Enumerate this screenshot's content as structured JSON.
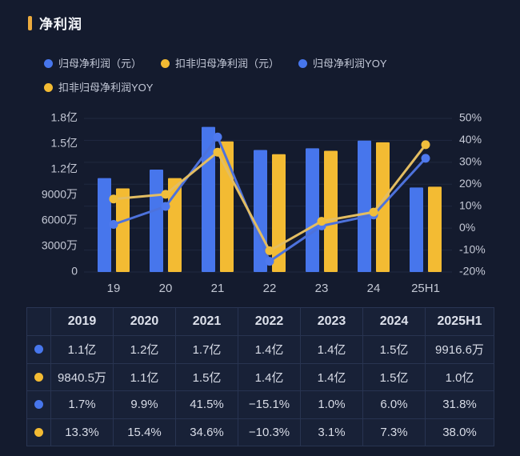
{
  "header": {
    "title": "净利润",
    "accent_color": "#EBAA3E"
  },
  "legend": [
    {
      "label": "归母净利润（元）",
      "color": "#4776EC"
    },
    {
      "label": "扣非归母净利润（元）",
      "color": "#F3BB33"
    },
    {
      "label": "归母净利润YOY",
      "color": "#4776EC"
    },
    {
      "label": "扣非归母净利润YOY",
      "color": "#F3BB33"
    }
  ],
  "chart_data": {
    "type": "bar+line",
    "title": "净利润",
    "categories": [
      "19",
      "20",
      "21",
      "22",
      "23",
      "24",
      "25H1"
    ],
    "left_axis": {
      "labels": [
        "1.8亿",
        "1.5亿",
        "1.2亿",
        "9000万",
        "6000万",
        "3000万",
        "0"
      ],
      "min_yi": 0,
      "max_yi": 1.8
    },
    "right_axis": {
      "labels": [
        "50%",
        "40%",
        "30%",
        "20%",
        "10%",
        "0%",
        "-10%",
        "-20%"
      ],
      "min_pct": -20,
      "max_pct": 50
    },
    "grid": "horizontal-only",
    "legend_position": "top",
    "series": [
      {
        "name": "归母净利润（元）",
        "type": "bar",
        "color": "#4776EC",
        "values_yi": [
          1.1,
          1.2,
          1.7,
          1.43,
          1.45,
          1.54,
          0.99
        ]
      },
      {
        "name": "扣非归母净利润（元）",
        "type": "bar",
        "color": "#F3BB33",
        "values_yi": [
          0.98,
          1.1,
          1.53,
          1.38,
          1.42,
          1.52,
          1.0
        ]
      },
      {
        "name": "归母净利润YOY",
        "type": "line",
        "line_color": "#4D72DC",
        "marker_color": "#4E79EE",
        "values_pct": [
          1.7,
          9.9,
          41.5,
          -15.1,
          1.0,
          6.0,
          31.8
        ]
      },
      {
        "name": "扣非归母净利润YOY",
        "type": "line",
        "line_color": "#E3BD62",
        "marker_color": "#F0BE3C",
        "values_pct": [
          13.3,
          15.4,
          34.6,
          -10.3,
          3.1,
          7.3,
          38.0
        ]
      }
    ]
  },
  "table": {
    "header": [
      "",
      "2019",
      "2020",
      "2021",
      "2022",
      "2023",
      "2024",
      "2025H1"
    ],
    "rows": [
      {
        "dot_color": "#4776EC",
        "cells": [
          "1.1亿",
          "1.2亿",
          "1.7亿",
          "1.4亿",
          "1.4亿",
          "1.5亿",
          "9916.6万"
        ]
      },
      {
        "dot_color": "#F3BB33",
        "cells": [
          "9840.5万",
          "1.1亿",
          "1.5亿",
          "1.4亿",
          "1.4亿",
          "1.5亿",
          "1.0亿"
        ]
      },
      {
        "dot_color": "#4776EC",
        "cells": [
          "1.7%",
          "9.9%",
          "41.5%",
          "−15.1%",
          "1.0%",
          "6.0%",
          "31.8%"
        ]
      },
      {
        "dot_color": "#F3BB33",
        "cells": [
          "13.3%",
          "15.4%",
          "34.6%",
          "−10.3%",
          "3.1%",
          "7.3%",
          "38.0%"
        ]
      }
    ]
  }
}
